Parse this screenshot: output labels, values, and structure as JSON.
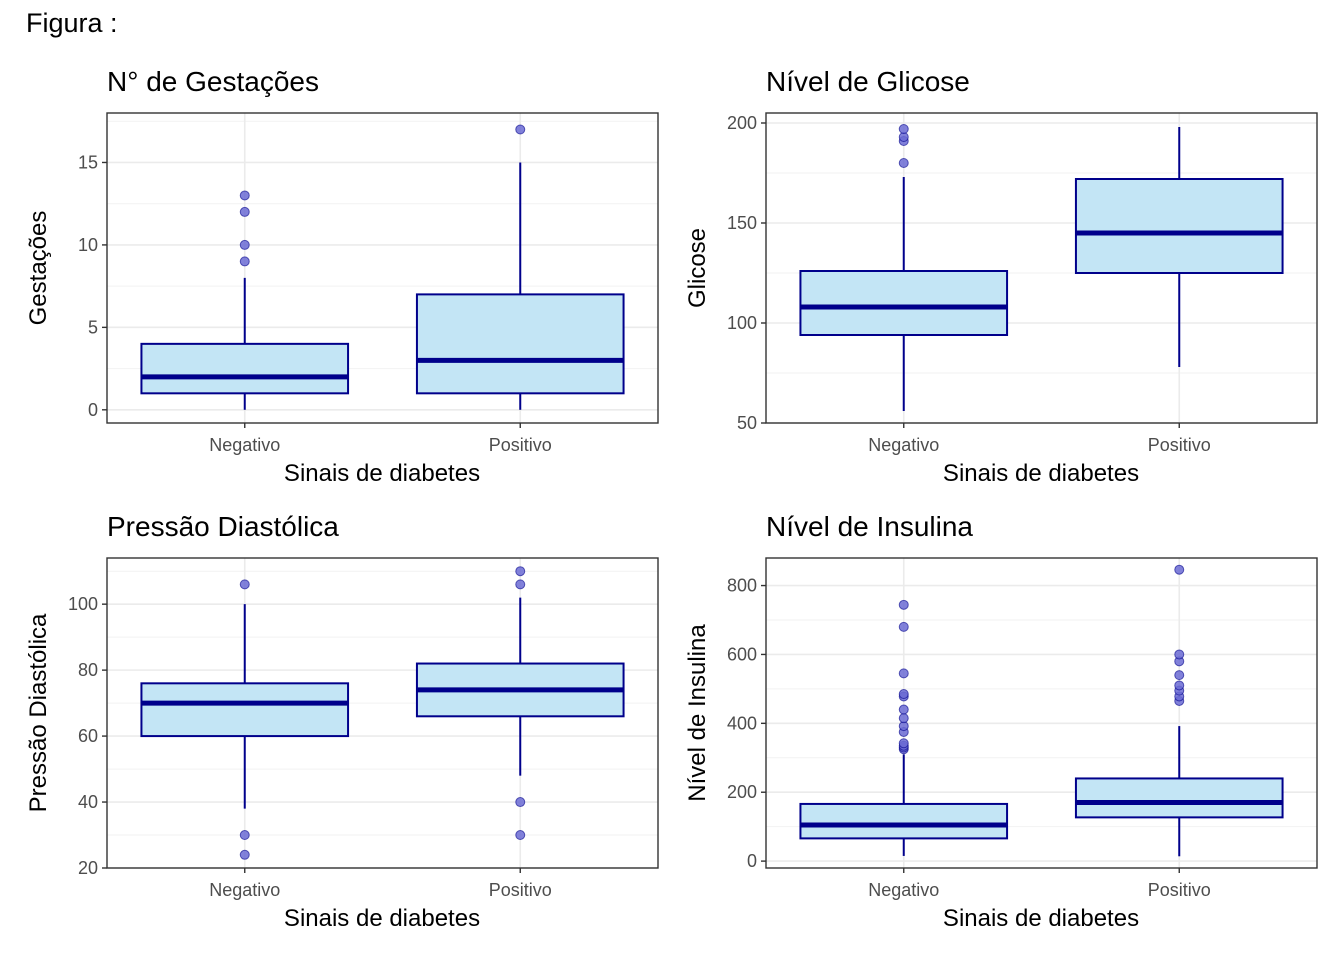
{
  "figure_label": "Figura :",
  "colors": {
    "box_fill": "#c3e5f5",
    "box_stroke": "#00008b",
    "outlier_fill": "#6b6bd4",
    "grid": "#ebebeb",
    "axis_text": "#4d4d4d"
  },
  "chart_data": [
    {
      "type": "boxplot",
      "title": "N° de Gestações",
      "xlabel": "Sinais de diabetes",
      "ylabel": "Gestações",
      "categories": [
        "Negativo",
        "Positivo"
      ],
      "ylim": [
        -0.8,
        18
      ],
      "yticks": [
        0,
        5,
        10,
        15
      ],
      "grid": true,
      "boxes": [
        {
          "category": "Negativo",
          "min": 0,
          "q1": 1,
          "median": 2,
          "q3": 4,
          "max": 8,
          "outliers": [
            9,
            10,
            12,
            13
          ]
        },
        {
          "category": "Positivo",
          "min": 0,
          "q1": 1,
          "median": 3,
          "q3": 7,
          "max": 15,
          "outliers": [
            17
          ]
        }
      ]
    },
    {
      "type": "boxplot",
      "title": "Nível de Glicose",
      "xlabel": "Sinais de diabetes",
      "ylabel": "Glicose",
      "categories": [
        "Negativo",
        "Positivo"
      ],
      "ylim": [
        50,
        205
      ],
      "yticks": [
        50,
        100,
        150,
        200
      ],
      "grid": true,
      "boxes": [
        {
          "category": "Negativo",
          "min": 56,
          "q1": 94,
          "median": 108,
          "q3": 126,
          "max": 173,
          "outliers": [
            180,
            191,
            193,
            197
          ]
        },
        {
          "category": "Positivo",
          "min": 78,
          "q1": 125,
          "median": 145,
          "q3": 172,
          "max": 198,
          "outliers": []
        }
      ]
    },
    {
      "type": "boxplot",
      "title": "Pressão Diastólica",
      "xlabel": "Sinais de diabetes",
      "ylabel": "Pressão Diastólica",
      "categories": [
        "Negativo",
        "Positivo"
      ],
      "ylim": [
        20,
        114
      ],
      "yticks": [
        20,
        40,
        60,
        80,
        100
      ],
      "grid": true,
      "boxes": [
        {
          "category": "Negativo",
          "min": 38,
          "q1": 60,
          "median": 70,
          "q3": 76,
          "max": 100,
          "outliers": [
            24,
            30,
            106
          ]
        },
        {
          "category": "Positivo",
          "min": 48,
          "q1": 66,
          "median": 74,
          "q3": 82,
          "max": 102,
          "outliers": [
            30,
            40,
            106,
            110
          ]
        }
      ]
    },
    {
      "type": "boxplot",
      "title": "Nível de Insulina",
      "xlabel": "Sinais de diabetes",
      "ylabel": "Nível de Insulina",
      "categories": [
        "Negativo",
        "Positivo"
      ],
      "ylim": [
        -20,
        880
      ],
      "yticks": [
        0,
        200,
        400,
        600,
        800
      ],
      "grid": true,
      "boxes": [
        {
          "category": "Negativo",
          "min": 15,
          "q1": 66,
          "median": 105,
          "q3": 166,
          "max": 310,
          "outliers": [
            325,
            330,
            335,
            342,
            375,
            392,
            415,
            440,
            478,
            485,
            545,
            680,
            744
          ]
        },
        {
          "category": "Positivo",
          "min": 14,
          "q1": 127,
          "median": 170,
          "q3": 240,
          "max": 392,
          "outliers": [
            465,
            478,
            495,
            510,
            540,
            580,
            600,
            846
          ]
        }
      ]
    }
  ]
}
